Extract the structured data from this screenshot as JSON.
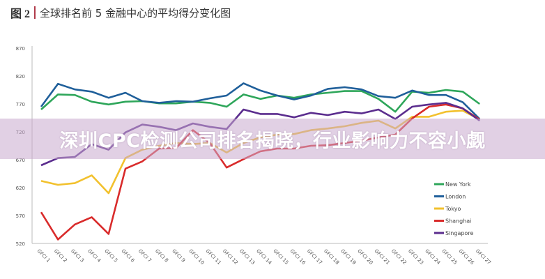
{
  "figure_label": "图 2",
  "banner_text": "深圳CPC检测公司排名揭晓，行业影响力不容小觑",
  "chart_data": {
    "type": "line",
    "title": "全球排名前 5 金融中心的平均得分变化图",
    "xlabel": "",
    "ylabel": "",
    "ylim": [
      520,
      870
    ],
    "yticks": [
      520,
      570,
      620,
      670,
      720,
      770,
      820,
      870
    ],
    "categories": [
      "GFCI 1",
      "GFCI 2",
      "GFCI 3",
      "GFCI 4",
      "GFCI 5",
      "GFCI 6",
      "GFCI 7",
      "GFCI 8",
      "GFCI 9",
      "GFCI 10",
      "GFCI 11",
      "GFCI 12",
      "GFCI 13",
      "GFCI 14",
      "GFCI 15",
      "GFCI 16",
      "GFCI 17",
      "GFCI 18",
      "GFCI 19",
      "GFCI 20",
      "GFCI 21",
      "GFCI 22",
      "GFCI 23",
      "GFCI 24",
      "GFCI 25",
      "GFCI 26",
      "GFCI 27"
    ],
    "legend_position": "bottom-right",
    "grid": false,
    "series": [
      {
        "name": "New York",
        "color": "#2ea65a",
        "values": [
          760,
          787,
          786,
          774,
          769,
          774,
          775,
          771,
          771,
          774,
          772,
          765,
          787,
          779,
          785,
          781,
          787,
          790,
          793,
          793,
          779,
          756,
          792,
          790,
          795,
          792,
          770
        ]
      },
      {
        "name": "London",
        "color": "#1f5f9a",
        "values": [
          765,
          806,
          796,
          792,
          781,
          790,
          775,
          772,
          775,
          774,
          780,
          785,
          807,
          794,
          785,
          778,
          785,
          797,
          800,
          796,
          784,
          781,
          794,
          786,
          786,
          773,
          743
        ]
      },
      {
        "name": "Tokyo",
        "color": "#f2c12e",
        "values": [
          632,
          625,
          628,
          642,
          610,
          673,
          688,
          695,
          700,
          698,
          700,
          683,
          700,
          710,
          715,
          716,
          723,
          726,
          730,
          736,
          740,
          726,
          747,
          747,
          756,
          758,
          742
        ]
      },
      {
        "name": "Shanghai",
        "color": "#d92b2b",
        "values": [
          576,
          527,
          554,
          567,
          537,
          654,
          667,
          690,
          691,
          723,
          700,
          656,
          671,
          685,
          690,
          690,
          695,
          696,
          700,
          704,
          710,
          715,
          744,
          765,
          769,
          762,
          742
        ]
      },
      {
        "name": "Singapore",
        "color": "#5b2d8e",
        "values": [
          660,
          673,
          675,
          698,
          688,
          719,
          733,
          729,
          723,
          735,
          729,
          725,
          760,
          752,
          752,
          746,
          754,
          750,
          756,
          753,
          760,
          743,
          765,
          769,
          772,
          762,
          740
        ]
      }
    ]
  }
}
